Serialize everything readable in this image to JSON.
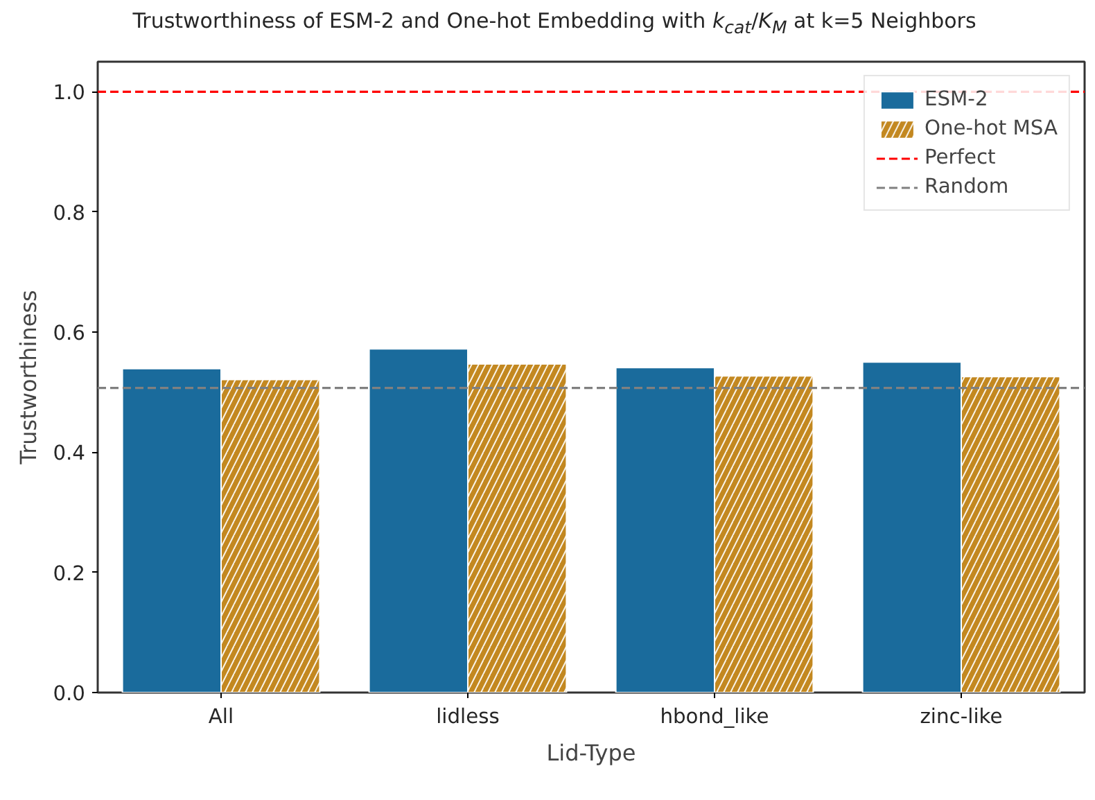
{
  "chart_data": {
    "type": "bar",
    "title": "Trustworthiness of ESM-2 and One-hot Embedding with k$_{cat}$/K$_{M}$ at k=5 Neighbors",
    "xlabel": "Lid-Type",
    "ylabel": "Trustworthiness",
    "categories": [
      "All",
      "lidless",
      "hbond_like",
      "zinc-like"
    ],
    "series": [
      {
        "name": "ESM-2",
        "color": "#1a6b9c",
        "values": [
          0.539,
          0.572,
          0.541,
          0.55
        ]
      },
      {
        "name": "One-hot MSA",
        "color": "#c38820",
        "values": [
          0.521,
          0.547,
          0.527,
          0.526
        ]
      }
    ],
    "ylim": [
      0,
      1.05
    ],
    "yticks": [
      {
        "value": 0,
        "label": "0.0"
      },
      0.2,
      0.4,
      0.6,
      0.8,
      {
        "value": 1,
        "label": "1.0"
      }
    ],
    "ref_lines": [
      {
        "axis": "y",
        "value": 1.0,
        "label": "Perfect",
        "color": "#ff0000",
        "line_style": "dashed"
      },
      {
        "axis": "y",
        "value": 0.507,
        "label": "Random",
        "color": "#808080",
        "line_style": "dashed"
      }
    ],
    "grid": false,
    "legend": "top right"
  }
}
